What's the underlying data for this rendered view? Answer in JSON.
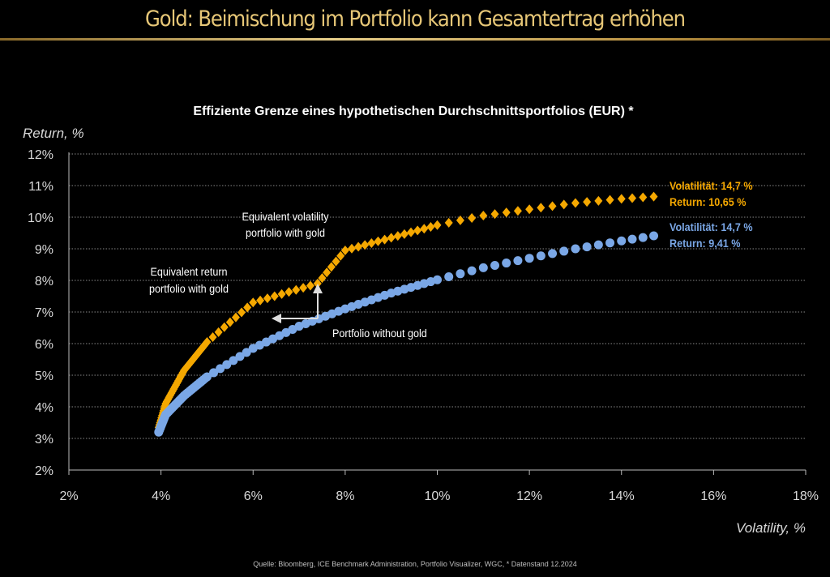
{
  "header": {
    "title": "Gold: Beimischung im Portfolio kann Gesamtertrag erhöhen"
  },
  "source": "Quelle: Bloomberg, ICE Benchmark Administration, Portfolio Visualizer, WGC, * Datenstand 12.2024",
  "chart_data": {
    "type": "scatter",
    "title": "Effiziente Grenze eines hypothetischen Durchschnittsportfolios (EUR) *",
    "xlabel": "Volatility, %",
    "ylabel": "Return, %",
    "xlim": [
      2,
      18
    ],
    "ylim": [
      2,
      12
    ],
    "xticks": [
      "2%",
      "4%",
      "6%",
      "8%",
      "10%",
      "12%",
      "14%",
      "16%",
      "18%"
    ],
    "yticks": [
      "2%",
      "3%",
      "4%",
      "5%",
      "6%",
      "7%",
      "8%",
      "9%",
      "10%",
      "11%",
      "12%"
    ],
    "grid": "horizontal dotted",
    "series": [
      {
        "name": "Portfolio with gold",
        "color": "#f5a800",
        "marker": "diamond",
        "points": [
          [
            3.95,
            3.35
          ],
          [
            4.1,
            4.1
          ],
          [
            4.5,
            5.15
          ],
          [
            5.0,
            6.05
          ],
          [
            6.0,
            7.3
          ],
          [
            6.4,
            6.8
          ],
          [
            7.4,
            7.9
          ],
          [
            8.0,
            8.95
          ],
          [
            9.0,
            9.35
          ],
          [
            10.0,
            9.75
          ],
          [
            11.0,
            10.05
          ],
          [
            12.0,
            10.25
          ],
          [
            13.0,
            10.45
          ],
          [
            14.0,
            10.58
          ],
          [
            14.7,
            10.65
          ]
        ]
      },
      {
        "name": "Portfolio without gold",
        "color": "#7aa7e6",
        "marker": "circle",
        "points": [
          [
            3.95,
            3.2
          ],
          [
            4.1,
            3.75
          ],
          [
            4.5,
            4.35
          ],
          [
            5.0,
            4.95
          ],
          [
            6.0,
            5.85
          ],
          [
            7.0,
            6.55
          ],
          [
            8.0,
            7.1
          ],
          [
            9.0,
            7.6
          ],
          [
            10.0,
            8.02
          ],
          [
            11.0,
            8.4
          ],
          [
            12.0,
            8.7
          ],
          [
            13.0,
            9.0
          ],
          [
            14.0,
            9.25
          ],
          [
            14.7,
            9.41
          ]
        ]
      }
    ],
    "annotations": {
      "equiv_vol": [
        "Equivalent volatility",
        "portfolio with gold"
      ],
      "equiv_ret": [
        "Equivalent return",
        "portfolio with gold"
      ],
      "without": "Portfolio without gold",
      "gold_end": [
        "Volatilität: 14,7 %",
        "Return: 10,65 %"
      ],
      "blue_end": [
        "Volatilität: 14,7 %",
        "Return: 9,41 %"
      ]
    }
  }
}
